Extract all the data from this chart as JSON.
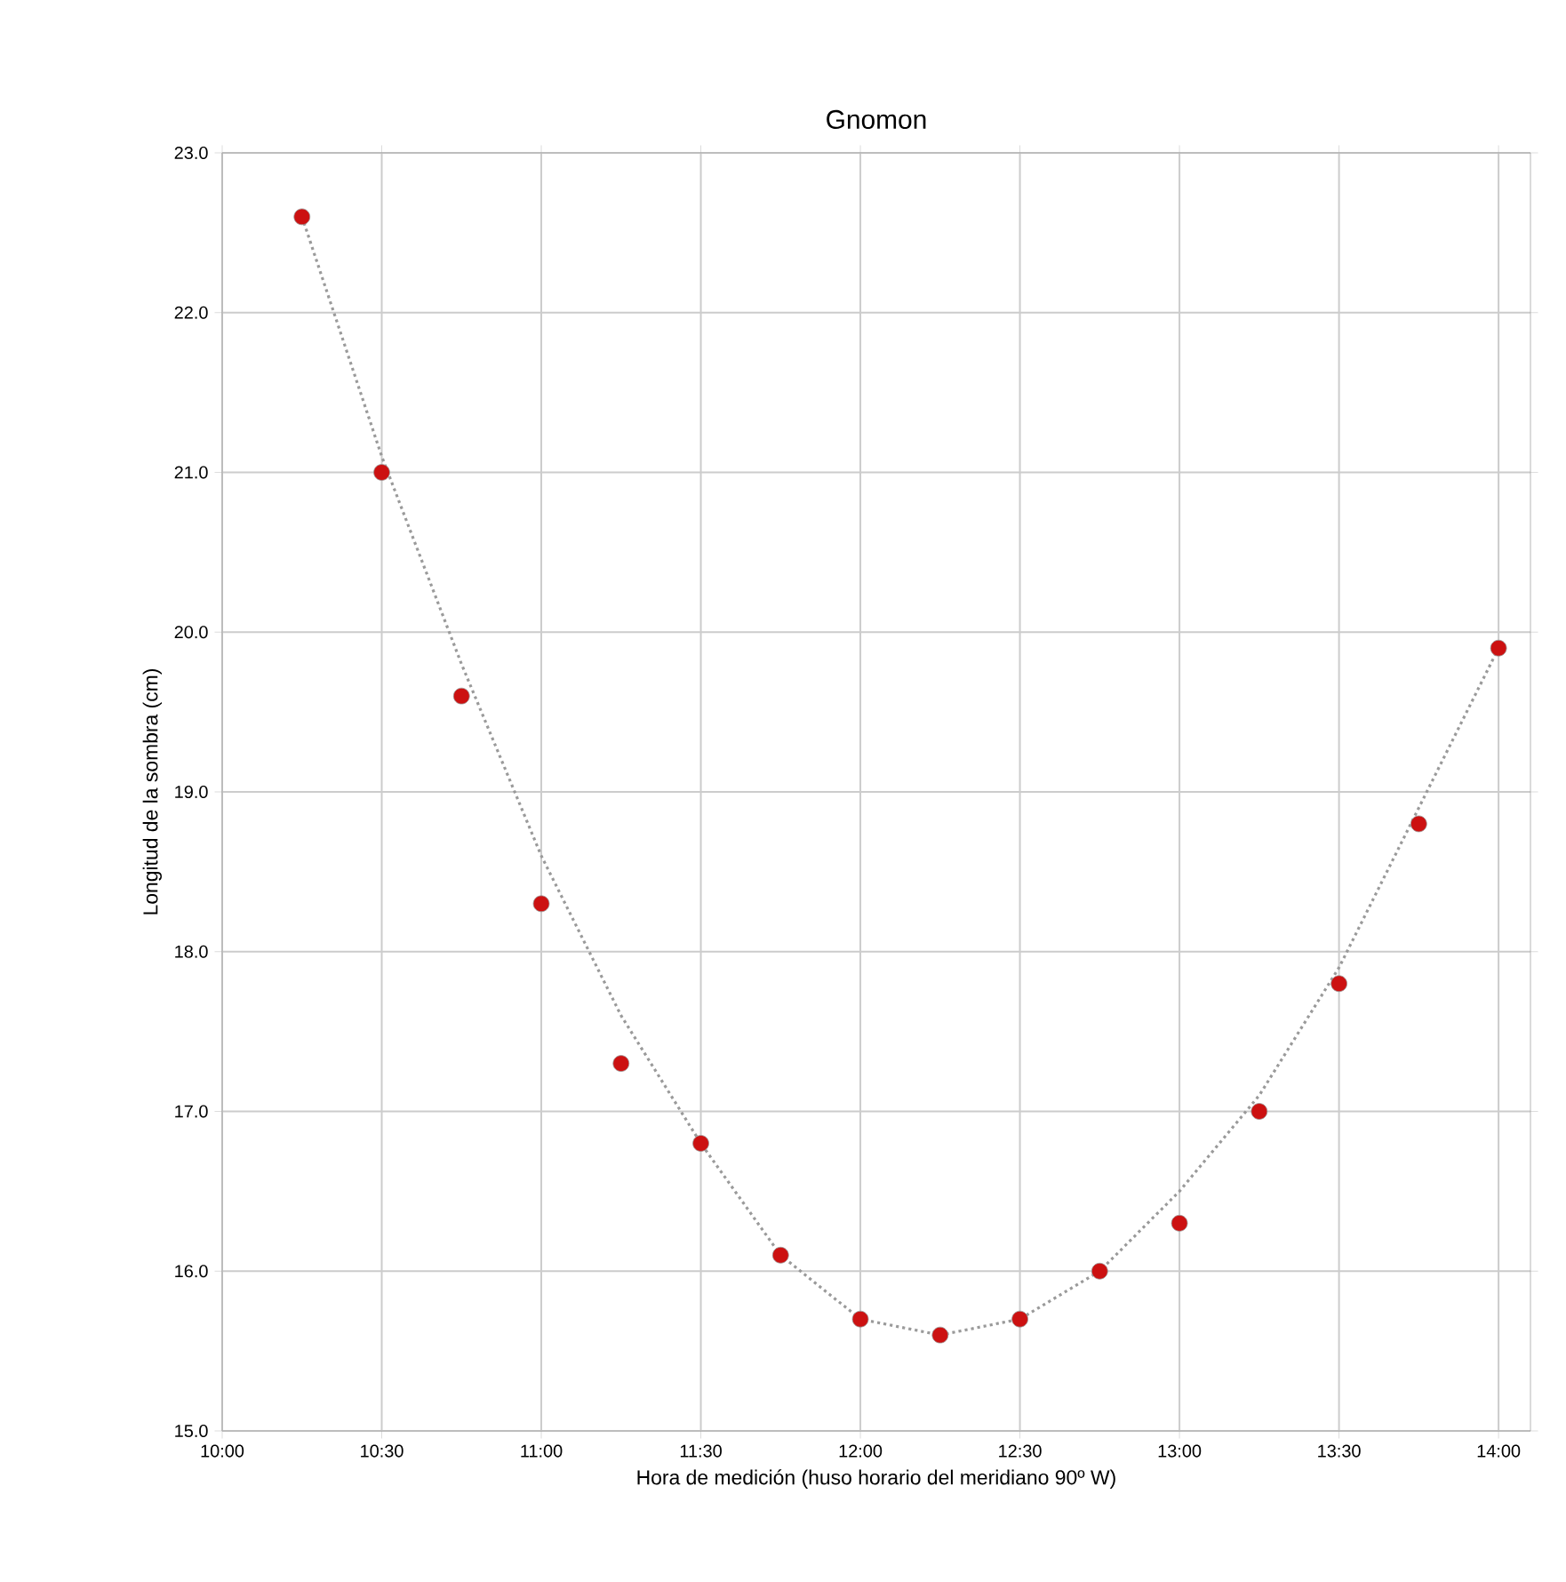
{
  "chart_data": {
    "type": "scatter",
    "title": "Gnomon",
    "xlabel": "Hora de medición (huso horario del meridiano 90º W)",
    "ylabel": "Longitud de la sombra (cm)",
    "xlim": [
      10,
      14.1
    ],
    "ylim": [
      15,
      23
    ],
    "xticks": [
      {
        "value": 10,
        "label": "10:00"
      },
      {
        "value": 10.5,
        "label": "10:30"
      },
      {
        "value": 11,
        "label": "11:00"
      },
      {
        "value": 11.5,
        "label": "11:30"
      },
      {
        "value": 12,
        "label": "12:00"
      },
      {
        "value": 12.5,
        "label": "12:30"
      },
      {
        "value": 13,
        "label": "13:00"
      },
      {
        "value": 13.5,
        "label": "13:30"
      },
      {
        "value": 14,
        "label": "14:00"
      }
    ],
    "yticks": [
      {
        "value": 15,
        "label": "15.0"
      },
      {
        "value": 16,
        "label": "16.0"
      },
      {
        "value": 17,
        "label": "17.0"
      },
      {
        "value": 18,
        "label": "18.0"
      },
      {
        "value": 19,
        "label": "19.0"
      },
      {
        "value": 20,
        "label": "20.0"
      },
      {
        "value": 21,
        "label": "21.0"
      },
      {
        "value": 22,
        "label": "22.0"
      },
      {
        "value": 23,
        "label": "23.0"
      }
    ],
    "grid": true,
    "marker": "circle",
    "series": [
      {
        "type": "line",
        "color": "#9a9a9a",
        "marker": "none",
        "line_style": "dotted",
        "x": [
          10.25,
          10.5,
          10.75,
          11,
          11.25,
          11.5,
          11.75,
          12,
          12.25,
          12.5,
          12.75,
          13,
          13.25,
          13.5,
          13.75,
          14
        ],
        "values": [
          22.6,
          21.1,
          19.8,
          18.6,
          17.6,
          16.8,
          16.1,
          15.7,
          15.6,
          15.7,
          16.0,
          16.5,
          17.1,
          17.9,
          18.9,
          19.9
        ]
      },
      {
        "color": "#cc1111",
        "x": [
          10.25,
          10.5,
          10.75,
          11,
          11.25,
          11.5,
          11.75,
          12,
          12.25,
          12.5,
          12.75,
          13,
          13.25,
          13.5,
          13.75,
          14
        ],
        "values": [
          22.6,
          21.0,
          19.6,
          18.3,
          17.3,
          16.8,
          16.1,
          15.7,
          15.6,
          15.7,
          16.0,
          16.3,
          17.0,
          17.8,
          18.8,
          19.9
        ]
      }
    ]
  }
}
